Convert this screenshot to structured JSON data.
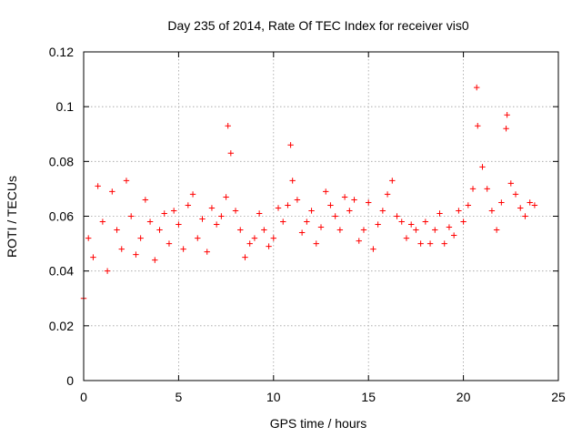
{
  "chart_data": {
    "type": "scatter",
    "title": "Day 235 of 2014, Rate Of TEC Index for receiver vis0",
    "xlabel": "GPS time / hours",
    "ylabel": "ROTI / TECUs",
    "xlim": [
      0,
      25
    ],
    "ylim": [
      0,
      0.12
    ],
    "xticks": [
      0,
      5,
      10,
      15,
      20,
      25
    ],
    "yticks": [
      0,
      0.02,
      0.04,
      0.06,
      0.08,
      0.1,
      0.12
    ],
    "xtick_labels": [
      "0",
      "5",
      "10",
      "15",
      "20",
      "25"
    ],
    "ytick_labels": [
      "0",
      "0.02",
      "0.04",
      "0.06",
      "0.08",
      "0.1",
      "0.12"
    ],
    "grid": true,
    "marker": "+",
    "color": "#ff0000",
    "series": [
      {
        "name": "ROTI",
        "x": [
          0.0,
          0.25,
          0.5,
          0.75,
          1.0,
          1.25,
          1.5,
          1.75,
          2.0,
          2.25,
          2.5,
          2.75,
          3.0,
          3.25,
          3.5,
          3.75,
          4.0,
          4.25,
          4.5,
          4.75,
          5.0,
          5.25,
          5.5,
          5.75,
          6.0,
          6.25,
          6.5,
          6.75,
          7.0,
          7.25,
          7.5,
          7.6,
          7.75,
          8.0,
          8.25,
          8.5,
          8.75,
          9.0,
          9.25,
          9.5,
          9.75,
          10.0,
          10.25,
          10.5,
          10.75,
          10.9,
          11.0,
          11.25,
          11.5,
          11.75,
          12.0,
          12.25,
          12.5,
          12.75,
          13.0,
          13.25,
          13.5,
          13.75,
          14.0,
          14.25,
          14.5,
          14.75,
          15.0,
          15.25,
          15.5,
          15.75,
          16.0,
          16.25,
          16.5,
          16.75,
          17.0,
          17.25,
          17.5,
          17.75,
          18.0,
          18.25,
          18.5,
          18.75,
          19.0,
          19.25,
          19.5,
          19.75,
          20.0,
          20.25,
          20.5,
          20.7,
          20.75,
          21.0,
          21.25,
          21.5,
          21.75,
          22.0,
          22.25,
          22.3,
          22.5,
          22.75,
          23.0,
          23.25,
          23.5,
          23.75
        ],
        "y": [
          0.03,
          0.052,
          0.045,
          0.071,
          0.058,
          0.04,
          0.069,
          0.055,
          0.048,
          0.073,
          0.06,
          0.046,
          0.052,
          0.066,
          0.058,
          0.044,
          0.055,
          0.061,
          0.05,
          0.062,
          0.057,
          0.048,
          0.064,
          0.068,
          0.052,
          0.059,
          0.047,
          0.063,
          0.057,
          0.06,
          0.067,
          0.093,
          0.083,
          0.062,
          0.055,
          0.045,
          0.05,
          0.052,
          0.061,
          0.055,
          0.049,
          0.052,
          0.063,
          0.058,
          0.064,
          0.086,
          0.073,
          0.066,
          0.054,
          0.058,
          0.062,
          0.05,
          0.056,
          0.069,
          0.064,
          0.06,
          0.055,
          0.067,
          0.062,
          0.066,
          0.051,
          0.055,
          0.065,
          0.048,
          0.057,
          0.062,
          0.068,
          0.073,
          0.06,
          0.058,
          0.052,
          0.057,
          0.055,
          0.05,
          0.058,
          0.05,
          0.055,
          0.061,
          0.05,
          0.056,
          0.053,
          0.062,
          0.058,
          0.064,
          0.07,
          0.107,
          0.093,
          0.078,
          0.07,
          0.062,
          0.055,
          0.065,
          0.092,
          0.097,
          0.072,
          0.068,
          0.063,
          0.06,
          0.065,
          0.064
        ]
      }
    ]
  }
}
